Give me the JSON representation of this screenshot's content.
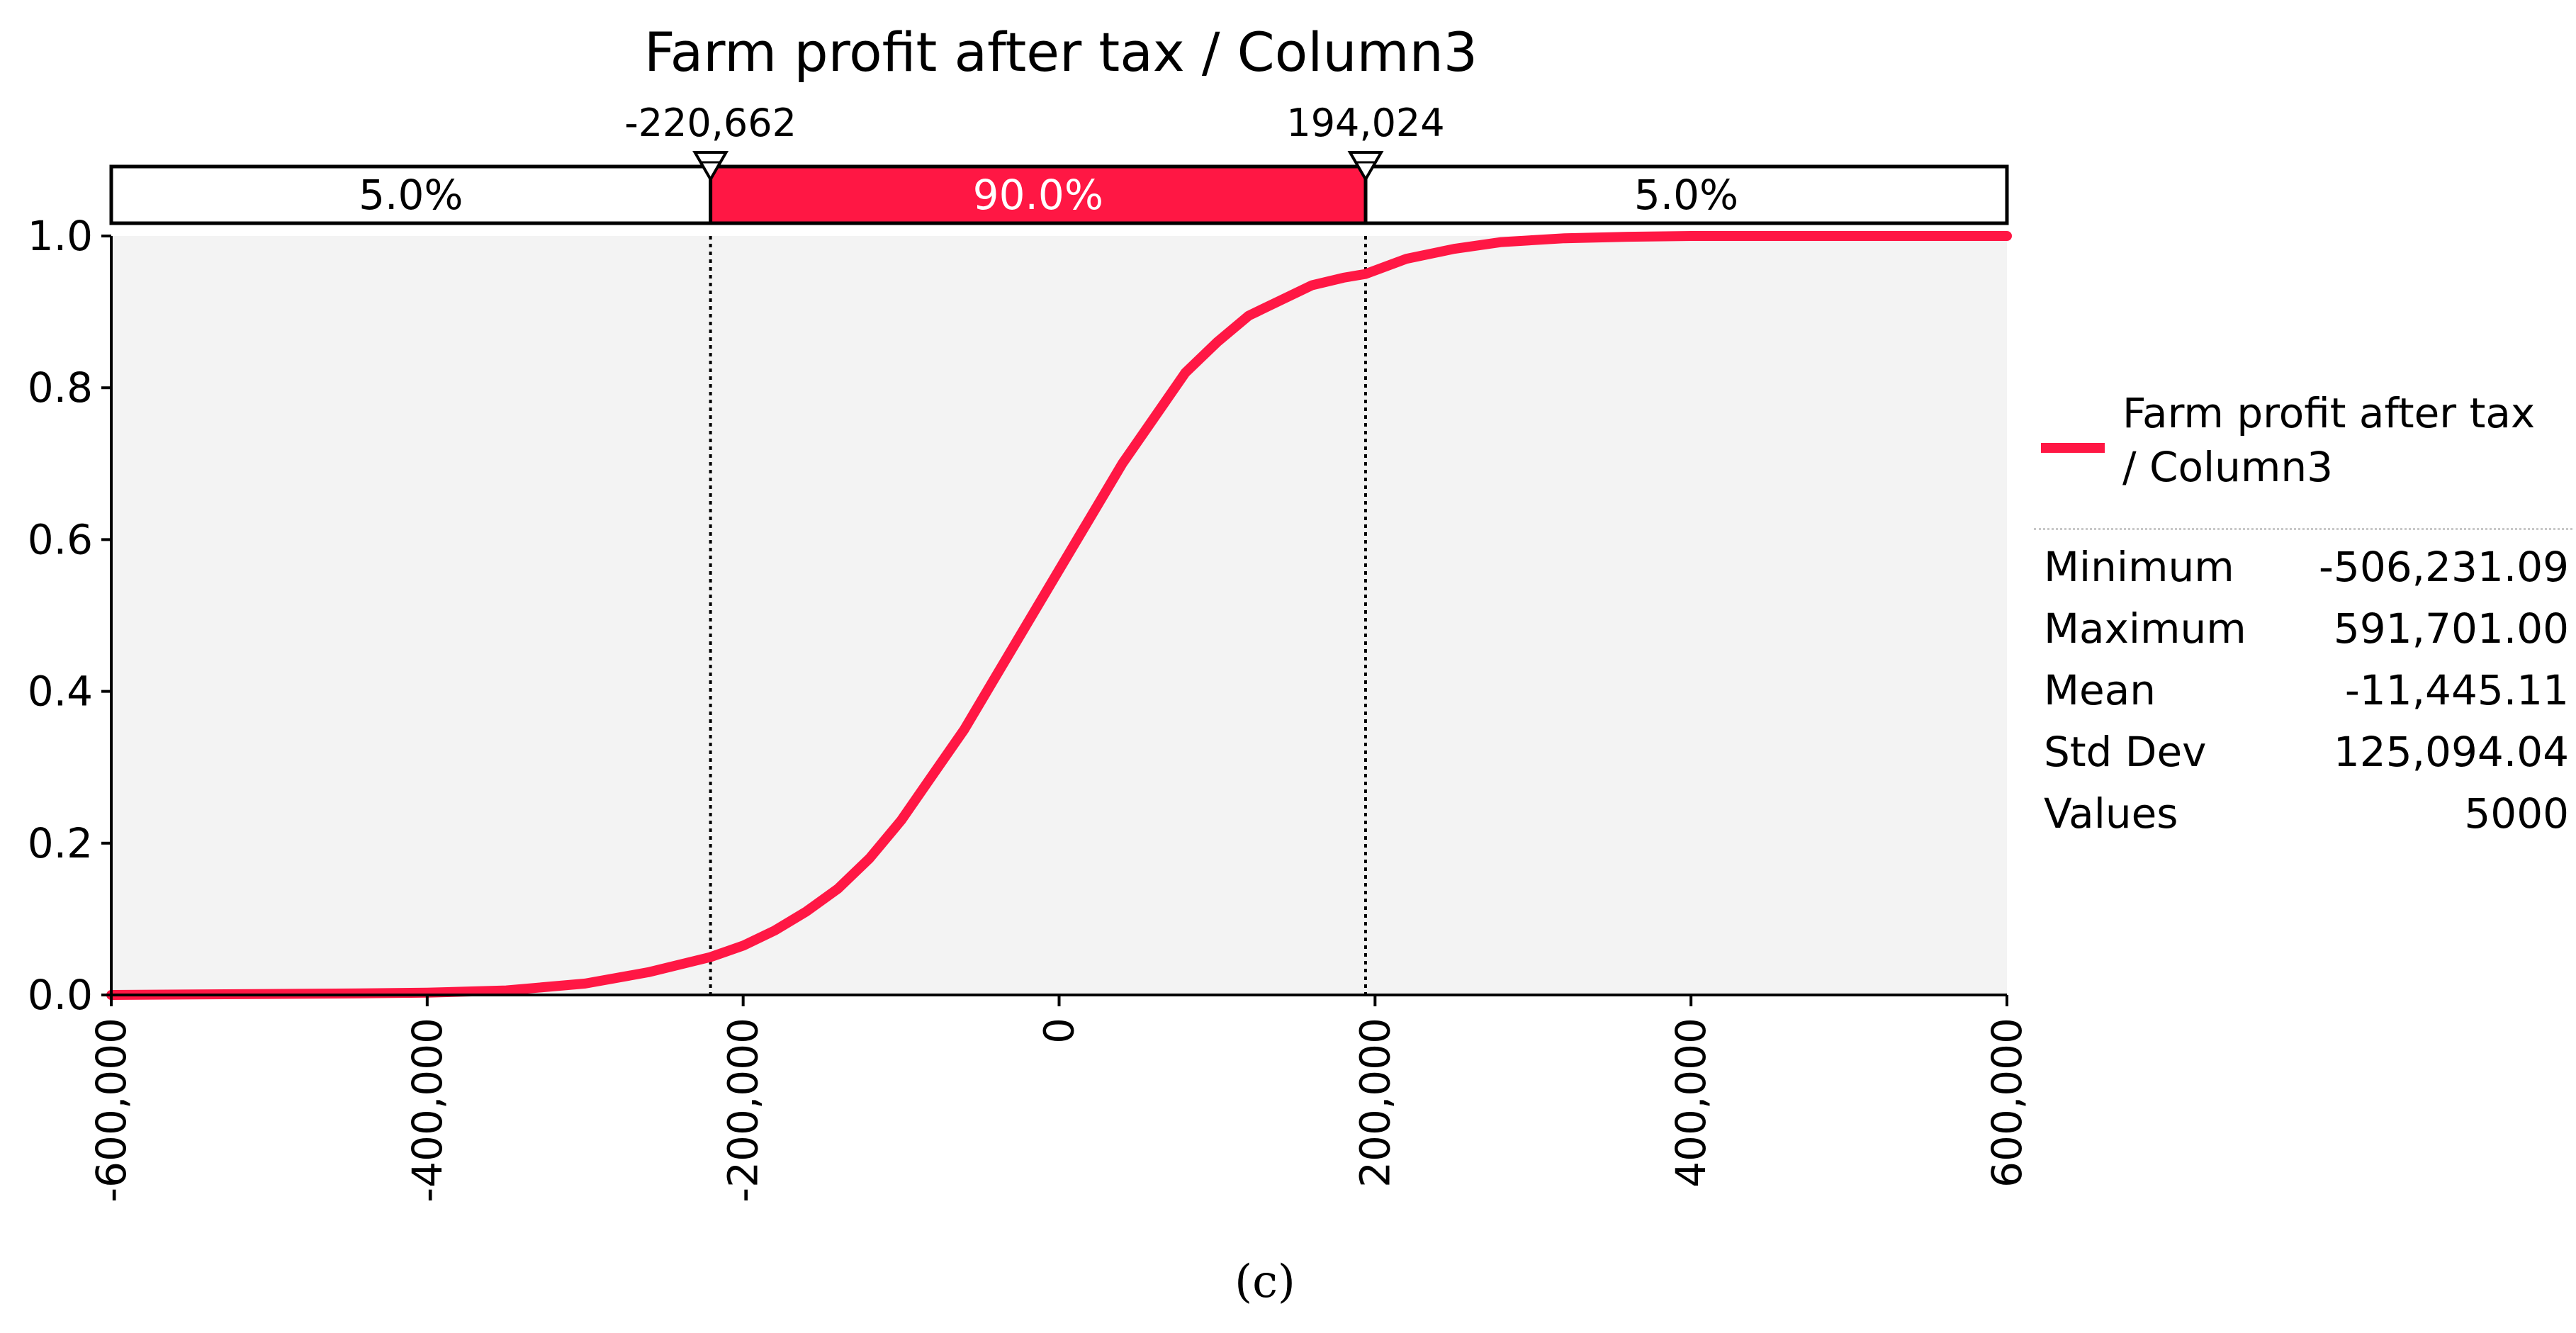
{
  "chart_data": {
    "type": "line",
    "title": "Farm profit after tax / Column3",
    "subtitle": "",
    "xlabel": "",
    "ylabel": "",
    "xlim": [
      -600000,
      600000
    ],
    "ylim": [
      0,
      1.0
    ],
    "x_ticks": [
      -600000,
      -400000,
      -200000,
      0,
      200000,
      400000,
      600000
    ],
    "x_tick_labels": [
      "-600,000",
      "-400,000",
      "-200,000",
      "0",
      "200,000",
      "400,000",
      "600,000"
    ],
    "y_ticks": [
      0,
      0.2,
      0.4,
      0.6,
      0.8,
      1.0
    ],
    "y_tick_labels": [
      "0.0",
      "0.2",
      "0.4",
      "0.6",
      "0.8",
      "1.0"
    ],
    "grid": false,
    "legend_position": "right",
    "series": [
      {
        "name": "Farm profit after tax / Column3",
        "color": "#ff1744",
        "x": [
          -600000,
          -450000,
          -400000,
          -350000,
          -300000,
          -260000,
          -220662,
          -200000,
          -180000,
          -160000,
          -140000,
          -120000,
          -100000,
          -80000,
          -60000,
          -40000,
          -20000,
          0,
          20000,
          40000,
          60000,
          80000,
          100000,
          120000,
          140000,
          160000,
          180000,
          194024,
          220000,
          250000,
          280000,
          320000,
          360000,
          400000,
          600000
        ],
        "y": [
          0.0,
          0.002,
          0.003,
          0.006,
          0.015,
          0.03,
          0.05,
          0.065,
          0.085,
          0.11,
          0.14,
          0.18,
          0.23,
          0.29,
          0.35,
          0.42,
          0.49,
          0.56,
          0.63,
          0.7,
          0.76,
          0.82,
          0.86,
          0.895,
          0.915,
          0.935,
          0.945,
          0.95,
          0.97,
          0.983,
          0.992,
          0.997,
          0.999,
          1.0,
          1.0
        ]
      }
    ],
    "delimiters": {
      "left_value": -220662,
      "right_value": 194024,
      "left_label": "-220,662",
      "right_label": "194,024",
      "bands": [
        "5.0%",
        "90.0%",
        "5.0%"
      ]
    },
    "statistics": [
      {
        "name": "Minimum",
        "value": "-506,231.09"
      },
      {
        "name": "Maximum",
        "value": "591,701.00"
      },
      {
        "name": "Mean",
        "value": "-11,445.11"
      },
      {
        "name": "Std Dev",
        "value": "125,094.04"
      },
      {
        "name": "Values",
        "value": "5000"
      }
    ],
    "panel_label": "(c)"
  },
  "colors": {
    "accent": "#ff1744",
    "plot_background": "#f3f3f3"
  }
}
